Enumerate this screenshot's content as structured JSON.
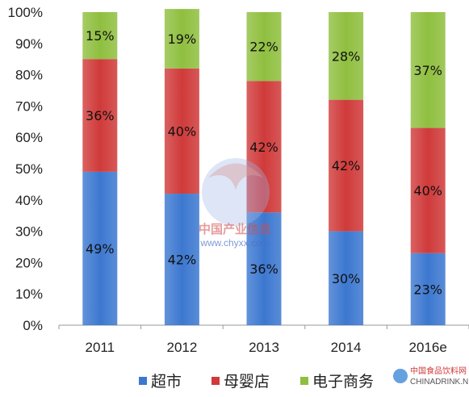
{
  "chart_data": {
    "type": "bar",
    "stacked": true,
    "percent": true,
    "categories": [
      "2011",
      "2012",
      "2013",
      "2014",
      "2016e"
    ],
    "series": [
      {
        "name": "超市",
        "color": "#3c78d0",
        "values": [
          49,
          42,
          36,
          30,
          23
        ],
        "labels": [
          "49%",
          "42%",
          "36%",
          "30%",
          "23%"
        ]
      },
      {
        "name": "母婴店",
        "color": "#d03a3a",
        "values": [
          36,
          40,
          42,
          42,
          40
        ],
        "labels": [
          "36%",
          "40%",
          "42%",
          "42%",
          "40%"
        ]
      },
      {
        "name": "电子商务",
        "color": "#8fbf3f",
        "values": [
          15,
          19,
          22,
          28,
          37
        ],
        "labels": [
          "15%",
          "19%",
          "22%",
          "28%",
          "37%"
        ]
      }
    ],
    "ylim": [
      0,
      100
    ],
    "yticks": [
      "0%",
      "10%",
      "20%",
      "30%",
      "40%",
      "50%",
      "60%",
      "70%",
      "80%",
      "90%",
      "100%"
    ],
    "grid": false,
    "legend_position": "bottom"
  },
  "watermark": {
    "text": "中国产业信息",
    "url": "www.chyxx.com"
  },
  "corner_logo": {
    "text_cn": "中国食品饮料网",
    "text_en": "CHINADRINK.NET"
  }
}
